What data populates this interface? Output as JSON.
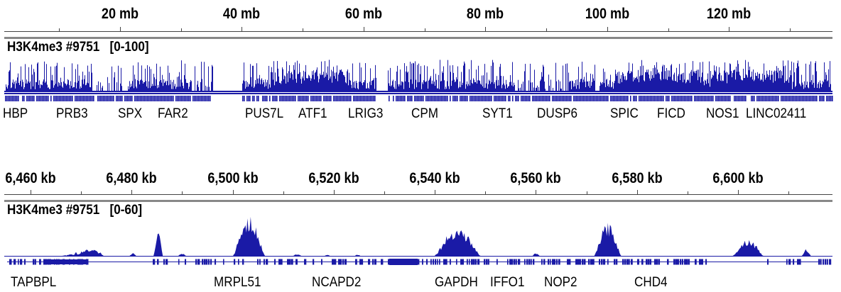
{
  "colors": {
    "signal": "#1a1aa6",
    "gene": "#1a1aa6",
    "ruler": "#444444",
    "separator": "#888888"
  },
  "chart_data": [
    {
      "type": "area",
      "ruler": {
        "unit": "mb",
        "tick_labels": [
          "20 mb",
          "40 mb",
          "60 mb",
          "80 mb",
          "100 mb",
          "120 mb"
        ],
        "ticks": [
          20,
          40,
          60,
          80,
          100,
          120
        ],
        "xlim": [
          1,
          137
        ]
      },
      "track": {
        "name": "H3K4me3 #9751",
        "range_label": "[0-100]",
        "ylim": [
          0,
          100
        ]
      },
      "genes": [
        "HBP",
        "PRB3",
        "SPX",
        "FAR2",
        "PUS7L",
        "ATF1",
        "LRIG3",
        "CPM",
        "SYT1",
        "DUSP6",
        "SPIC",
        "FICD",
        "NOS1",
        "LINC02411"
      ],
      "gene_positions": [
        0.8,
        9.5,
        19.7,
        26.2,
        40.5,
        49.3,
        57.5,
        67.8,
        79.5,
        88.5,
        100.5,
        108.2,
        116.2,
        122.8
      ]
    },
    {
      "type": "area",
      "ruler": {
        "unit": "kb",
        "tick_labels": [
          "6,460 kb",
          "6,480 kb",
          "6,500 kb",
          "6,520 kb",
          "6,540 kb",
          "6,560 kb",
          "6,580 kb",
          "6,600 kb"
        ],
        "ticks": [
          6460,
          6480,
          6500,
          6520,
          6540,
          6560,
          6580,
          6600
        ],
        "xlim": [
          6454.8,
          6618.7
        ]
      },
      "track": {
        "name": "H3K4me3 #9751",
        "range_label": "[0-60]",
        "ylim": [
          0,
          60
        ]
      },
      "peaks": [
        {
          "x": [
            6465.0,
            6475.5
          ],
          "y": 4
        },
        {
          "x": [
            6468.5,
            6469.5
          ],
          "y": 6
        },
        {
          "x": [
            6473.0,
            6474.5
          ],
          "y": 6
        },
        {
          "x": [
            6468.4,
            6474.9
          ],
          "y": 10
        },
        {
          "x": [
            6479.5,
            6481.0
          ],
          "y": 5
        },
        {
          "x": [
            6484.3,
            6486.2
          ],
          "y": 32
        },
        {
          "x": [
            6489.0,
            6491.0
          ],
          "y": 4
        },
        {
          "x": [
            6500.0,
            6506.5
          ],
          "y": 52
        },
        {
          "x": [
            6511.5,
            6514.0
          ],
          "y": 3
        },
        {
          "x": [
            6518.0,
            6519.5
          ],
          "y": 3
        },
        {
          "x": [
            6524.0,
            6525.5
          ],
          "y": 3
        },
        {
          "x": [
            6539.8,
            6549.2
          ],
          "y": 38
        },
        {
          "x": [
            6559.0,
            6561.0
          ],
          "y": 4
        },
        {
          "x": [
            6571.5,
            6577.0
          ],
          "y": 43
        },
        {
          "x": [
            6598.8,
            6605.2
          ],
          "y": 23
        },
        {
          "x": [
            6612.5,
            6614.5
          ],
          "y": 10
        }
      ],
      "genes": [
        "TAPBPL",
        "MRPL51",
        "NCAPD2",
        "GAPDH",
        "IFFO1",
        "NOP2",
        "CHD4"
      ],
      "gene_positions": [
        6456.0,
        6496.3,
        6515.7,
        6540.0,
        6551.0,
        6561.7,
        6579.5
      ]
    }
  ]
}
